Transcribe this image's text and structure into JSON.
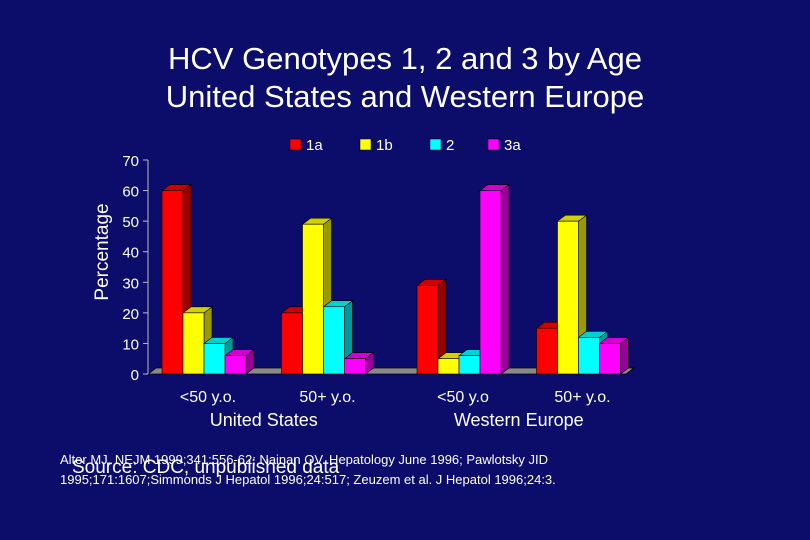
{
  "chart_data": {
    "type": "bar",
    "title": "HCV Genotypes 1, 2 and 3 by Age",
    "subtitle": "United States and Western Europe",
    "ylabel": "Percentage",
    "ylim": [
      0,
      70
    ],
    "yticks": [
      0,
      10,
      20,
      30,
      40,
      50,
      60,
      70
    ],
    "categories": [
      "<50 y.o.",
      "50+ y.o.",
      "<50 y.o",
      "50+ y.o."
    ],
    "groups": [
      {
        "label": "United States",
        "span": [
          0,
          1
        ]
      },
      {
        "label": "Western Europe",
        "span": [
          2,
          3
        ]
      }
    ],
    "series": [
      {
        "name": "1a",
        "color": "#ff0000",
        "values": [
          60,
          20,
          29,
          15
        ]
      },
      {
        "name": "1b",
        "color": "#ffff00",
        "values": [
          20,
          49,
          5,
          50
        ]
      },
      {
        "name": "2",
        "color": "#00ffff",
        "values": [
          10,
          22,
          6,
          12
        ]
      },
      {
        "name": "3a",
        "color": "#ff00ff",
        "values": [
          6,
          5,
          60,
          10
        ]
      }
    ],
    "legend_position": "top",
    "grid": false
  },
  "sources": {
    "line1": "Alter MJ. NEJM 1999;341:556-62; Nainan OV. Hepatology June 1996; Pawlotsky JID",
    "line2": "Source: CDC, unpublished data",
    "line3": "1995;171:1607;Simmonds J Hepatol 1996;24:517; Zeuzem et al. J Hepatol 1996;24:3."
  }
}
